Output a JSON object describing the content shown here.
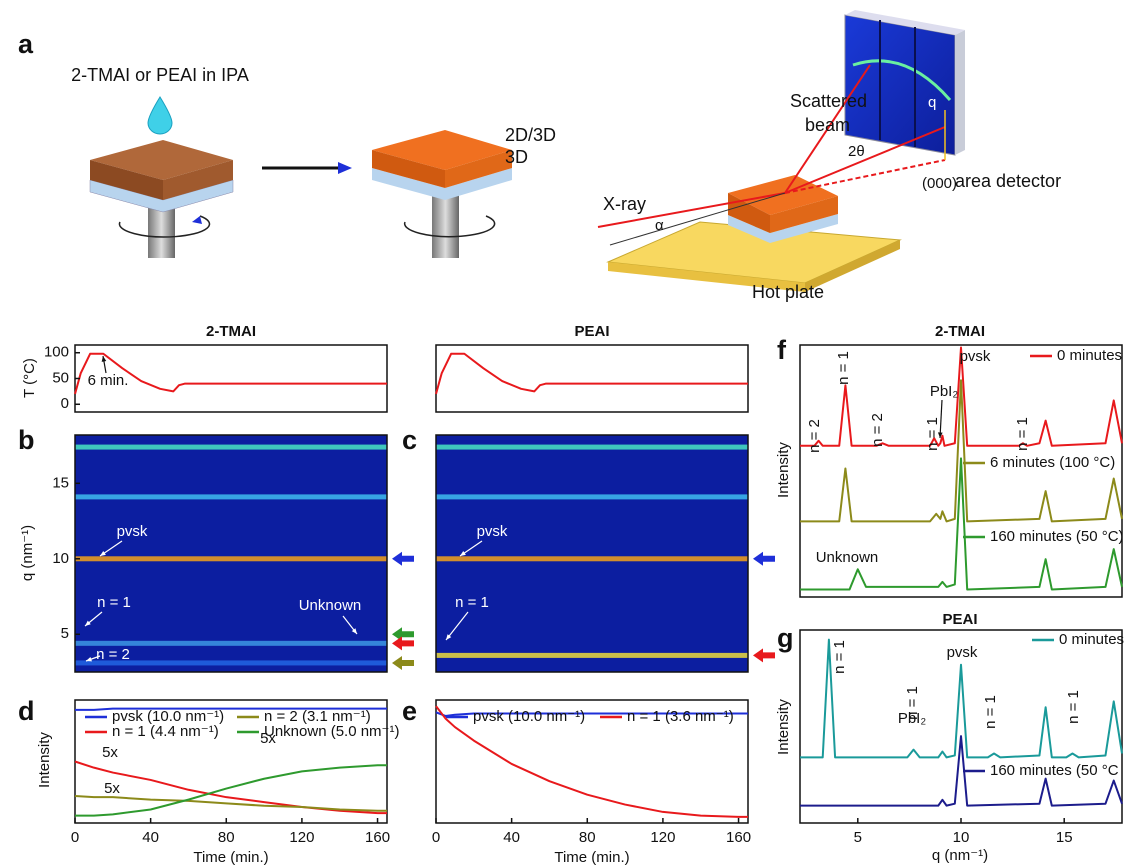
{
  "panel_labels": {
    "a": "a",
    "b": "b",
    "c": "c",
    "d": "d",
    "e": "e",
    "f": "f",
    "g": "g"
  },
  "schematic": {
    "solution": "2-TMAI or PEAI in IPA",
    "layer_top": "2D/3D",
    "layer_bottom": "3D",
    "scattered_1": "Scattered",
    "scattered_2": "beam",
    "q": "q",
    "two_theta": "2θ",
    "origin": "(000)",
    "detector": "area detector",
    "xray": "X-ray",
    "alpha": "α",
    "hot_plate": "Hot plate"
  },
  "chart_data": [
    {
      "type": "line",
      "title": "2-TMAI",
      "y_label": "T (°C)",
      "x": [
        0,
        3,
        8,
        15,
        25,
        35,
        45,
        52,
        55,
        58,
        60,
        80,
        165
      ],
      "series": [
        {
          "color": "#e8191c",
          "values": [
            20,
            60,
            98,
            98,
            70,
            45,
            30,
            25,
            37,
            40,
            40,
            40,
            40
          ]
        }
      ],
      "xlim": [
        0,
        165
      ],
      "ylim": [
        -15,
        115
      ],
      "yticks": [
        0,
        50,
        100
      ],
      "annotations": [
        "6 min."
      ]
    },
    {
      "type": "line",
      "title": "PEAI",
      "x": [
        0,
        3,
        8,
        15,
        25,
        35,
        45,
        52,
        55,
        58,
        60,
        80,
        165
      ],
      "series": [
        {
          "color": "#e8191c",
          "values": [
            20,
            60,
            98,
            98,
            70,
            45,
            30,
            25,
            37,
            40,
            40,
            40,
            40
          ]
        }
      ],
      "xlim": [
        0,
        165
      ],
      "ylim": [
        -15,
        115
      ]
    },
    {
      "type": "heatmap",
      "y_label": "q (nm⁻¹)",
      "xlim": [
        0,
        165
      ],
      "ylim": [
        2.5,
        18.2
      ],
      "yticks": [
        5,
        10,
        15
      ],
      "bands": [
        17.4,
        14.1,
        10.0,
        4.4,
        3.1
      ],
      "band_colors": [
        "#45d9c0",
        "#3cb4ea",
        "#e89a20",
        "#3a90e0",
        "#2060e0"
      ],
      "arrows": [
        10.0,
        5.0,
        4.4,
        3.1
      ],
      "arrow_colors": [
        "#1e2fd8",
        "#2e9a2e",
        "#e8191c",
        "#8c8a1a"
      ],
      "annotations": [
        "pvsk",
        "n = 1",
        "n = 2",
        "Unknown"
      ]
    },
    {
      "type": "heatmap",
      "xlim": [
        0,
        165
      ],
      "ylim": [
        2.5,
        18.2
      ],
      "bands": [
        17.4,
        14.1,
        10.0,
        3.6
      ],
      "band_colors": [
        "#45d9c0",
        "#3cb4ea",
        "#e89a20",
        "#e0d040"
      ],
      "arrows": [
        10.0,
        3.6
      ],
      "arrow_colors": [
        "#1e2fd8",
        "#e8191c"
      ],
      "annotations": [
        "pvsk",
        "n = 1"
      ]
    },
    {
      "type": "line",
      "x_label": "Time (min.)",
      "y_label": "Intensity",
      "x": [
        0,
        10,
        20,
        40,
        60,
        80,
        100,
        120,
        140,
        160,
        165
      ],
      "series": [
        {
          "name": "pvsk (10.0 nm⁻¹)",
          "color": "#1e2fd8",
          "values": [
            92,
            92,
            93,
            93,
            93,
            93,
            93,
            93,
            93,
            93,
            93
          ]
        },
        {
          "name": "n = 1 (4.4 nm⁻¹)",
          "color": "#e8191c",
          "values": [
            50,
            45,
            41,
            35,
            27,
            21,
            17,
            13,
            10,
            8,
            8
          ]
        },
        {
          "name": "n = 2 (3.1 nm⁻¹)",
          "color": "#8c8a1a",
          "values": [
            22,
            21,
            21,
            19,
            18,
            16,
            14,
            13,
            11,
            10,
            10
          ]
        },
        {
          "name": "Unknown (5.0 nm⁻¹)",
          "color": "#2e9a2e",
          "values": [
            6,
            6,
            7,
            11,
            19,
            28,
            36,
            42,
            45,
            47,
            47
          ]
        }
      ],
      "xlim": [
        0,
        165
      ],
      "ylim": [
        0,
        100
      ],
      "xticks": [
        0,
        40,
        80,
        120,
        160
      ],
      "annotations": [
        "5x",
        "5x",
        "5x"
      ]
    },
    {
      "type": "line",
      "x_label": "Time (min.)",
      "x": [
        0,
        5,
        10,
        20,
        40,
        60,
        80,
        100,
        120,
        140,
        160,
        165
      ],
      "series": [
        {
          "name": "pvsk (10.0 nm⁻¹)",
          "color": "#1e2fd8",
          "values": [
            90,
            87,
            88,
            89,
            89,
            89,
            89,
            89,
            89,
            89,
            89,
            89
          ]
        },
        {
          "name": "n = 1 (3.6 nm⁻¹)",
          "color": "#e8191c",
          "values": [
            95,
            85,
            78,
            67,
            48,
            34,
            23,
            15,
            9,
            6,
            5,
            5
          ]
        }
      ],
      "xlim": [
        0,
        165
      ],
      "ylim": [
        0,
        100
      ],
      "xticks": [
        0,
        40,
        80,
        120,
        160
      ]
    },
    {
      "type": "line",
      "title": "2-TMAI",
      "y_label": "Intensity",
      "xlim": [
        2.2,
        17.8
      ],
      "ylim": [
        0,
        100
      ],
      "series": [
        {
          "name": "0 minutes",
          "color": "#e8191c",
          "x": [
            2.2,
            2.9,
            3.1,
            3.3,
            4.1,
            4.4,
            4.7,
            5.9,
            6.2,
            6.5,
            8.5,
            8.7,
            8.9,
            9.0,
            9.1,
            9.2,
            9.7,
            10.0,
            10.3,
            12.8,
            13.0,
            13.2,
            13.8,
            14.1,
            14.4,
            17.0,
            17.4,
            17.8
          ],
          "values": [
            60,
            60,
            62,
            60,
            60,
            84,
            60,
            60,
            61,
            60,
            60,
            63,
            60,
            61,
            64,
            60,
            61,
            99,
            60,
            60,
            61,
            60,
            61,
            70,
            60,
            61,
            78,
            61
          ]
        },
        {
          "name": "6 minutes (100 °C)",
          "color": "#8c8a1a",
          "x": [
            2.2,
            4.1,
            4.4,
            4.7,
            8.5,
            8.8,
            9.0,
            9.1,
            9.3,
            9.7,
            10.0,
            10.3,
            13.8,
            14.1,
            14.4,
            17.0,
            17.4,
            17.8
          ],
          "values": [
            30,
            30,
            51,
            30,
            30,
            33,
            31,
            34,
            30,
            31,
            86,
            30,
            31,
            42,
            30,
            31,
            47,
            31
          ]
        },
        {
          "name": "160 minutes (50 °C)",
          "color": "#2e9a2e",
          "x": [
            2.2,
            4.6,
            5.0,
            5.4,
            8.9,
            9.1,
            9.3,
            9.7,
            10.0,
            10.3,
            13.8,
            14.1,
            14.4,
            17.0,
            17.4,
            17.8
          ],
          "values": [
            3,
            3,
            11,
            4,
            4,
            6,
            4,
            5,
            55,
            3,
            4,
            15,
            3,
            4,
            19,
            4
          ]
        }
      ],
      "annotations": [
        "n = 2",
        "n = 1",
        "n = 2",
        "n = 1",
        "PbI₂",
        "pvsk",
        "n = 1",
        "Unknown"
      ]
    },
    {
      "type": "line",
      "title": "PEAI",
      "y_label": "Intensity",
      "x_label": "q (nm⁻¹)",
      "xlim": [
        2.2,
        17.8
      ],
      "ylim": [
        0,
        100
      ],
      "xticks": [
        5,
        10,
        15
      ],
      "series": [
        {
          "name": "0 minutes",
          "color": "#1a9a9a",
          "x": [
            2.2,
            3.3,
            3.6,
            3.9,
            7.4,
            7.7,
            8.0,
            8.9,
            9.1,
            9.3,
            9.7,
            10.0,
            10.3,
            11.3,
            11.6,
            11.9,
            13.8,
            14.1,
            14.4,
            15.1,
            15.4,
            15.7,
            17.0,
            17.4,
            17.8
          ],
          "values": [
            34,
            34,
            95,
            34,
            34,
            38,
            34,
            34,
            37,
            34,
            35,
            82,
            34,
            34,
            36,
            34,
            35,
            60,
            34,
            34,
            36,
            34,
            35,
            63,
            36
          ]
        },
        {
          "name": "160 minutes (50 °C",
          "color": "#1c1c8c",
          "x": [
            2.2,
            8.9,
            9.1,
            9.3,
            9.7,
            10.0,
            10.3,
            13.8,
            14.1,
            14.4,
            17.0,
            17.4,
            17.8
          ],
          "values": [
            9,
            9,
            12,
            9,
            10,
            45,
            9,
            10,
            23,
            9,
            10,
            22,
            10
          ]
        }
      ],
      "annotations": [
        "n = 1",
        "n = 1",
        "PbI₂",
        "n = 1",
        "n = 1",
        "pvsk"
      ]
    }
  ]
}
